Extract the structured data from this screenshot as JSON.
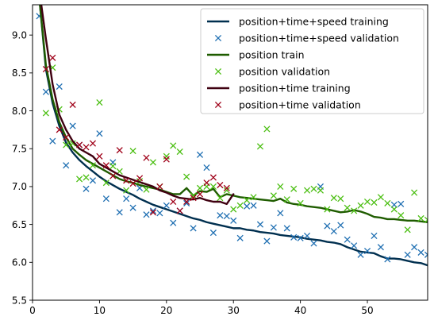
{
  "chart_data": {
    "type": "line",
    "title": "",
    "xlabel": "",
    "ylabel": "",
    "xlim": [
      0,
      59
    ],
    "ylim": [
      5.5,
      9.4
    ],
    "xticks": [
      0,
      10,
      20,
      30,
      40,
      50
    ],
    "xtick_labels": [
      "0",
      "10",
      "20",
      "30",
      "40",
      "50"
    ],
    "yticks": [
      5.5,
      6.0,
      6.5,
      7.0,
      7.5,
      8.0,
      8.5,
      9.0
    ],
    "ytick_labels": [
      "5.5",
      "6.0",
      "6.5",
      "7.0",
      "7.5",
      "8.0",
      "8.5",
      "9.0"
    ],
    "grid": false,
    "legend_placement": "top-right",
    "series": [
      {
        "name": "position+time+speed training",
        "kind": "line",
        "color": "#002f4f",
        "x": [
          1,
          2,
          3,
          4,
          5,
          6,
          7,
          8,
          9,
          10,
          11,
          12,
          13,
          14,
          15,
          16,
          17,
          18,
          19,
          20,
          21,
          22,
          23,
          24,
          25,
          26,
          27,
          28,
          29,
          30,
          31,
          32,
          33,
          34,
          35,
          36,
          37,
          38,
          39,
          40,
          41,
          42,
          43,
          44,
          45,
          46,
          47,
          48,
          49,
          50,
          51,
          52,
          53,
          54,
          55,
          56,
          57,
          58,
          59
        ],
        "y": [
          9.5,
          8.55,
          8.1,
          7.8,
          7.58,
          7.45,
          7.35,
          7.27,
          7.2,
          7.13,
          7.07,
          7.02,
          6.97,
          6.93,
          6.89,
          6.84,
          6.8,
          6.76,
          6.73,
          6.7,
          6.67,
          6.64,
          6.61,
          6.58,
          6.56,
          6.53,
          6.51,
          6.49,
          6.47,
          6.45,
          6.45,
          6.43,
          6.42,
          6.4,
          6.39,
          6.38,
          6.36,
          6.35,
          6.34,
          6.33,
          6.31,
          6.3,
          6.29,
          6.27,
          6.26,
          6.24,
          6.2,
          6.17,
          6.14,
          6.13,
          6.12,
          6.08,
          6.05,
          6.05,
          6.04,
          6.02,
          6.0,
          5.99,
          5.96
        ]
      },
      {
        "name": "position+time+speed validation",
        "kind": "scatter",
        "color": "#1f6fb2",
        "x": [
          1,
          2,
          3,
          4,
          5,
          6,
          7,
          8,
          9,
          10,
          11,
          12,
          13,
          14,
          15,
          16,
          17,
          18,
          19,
          20,
          21,
          22,
          23,
          24,
          25,
          26,
          27,
          28,
          29,
          30,
          31,
          32,
          33,
          34,
          35,
          36,
          37,
          38,
          39,
          40,
          41,
          42,
          43,
          44,
          45,
          46,
          47,
          48,
          49,
          50,
          51,
          52,
          53,
          54,
          55,
          56,
          57,
          58,
          59
        ],
        "y": [
          9.25,
          8.25,
          7.6,
          8.32,
          7.28,
          7.8,
          7.55,
          6.97,
          7.08,
          7.7,
          6.84,
          7.32,
          6.66,
          6.84,
          6.72,
          6.98,
          6.63,
          6.68,
          6.65,
          6.75,
          6.52,
          6.68,
          6.78,
          6.45,
          7.42,
          7.25,
          6.39,
          6.62,
          6.61,
          6.55,
          6.32,
          6.74,
          6.75,
          6.5,
          6.28,
          6.46,
          6.65,
          6.45,
          6.33,
          6.32,
          6.35,
          6.25,
          7.0,
          6.48,
          6.41,
          6.49,
          6.3,
          6.22,
          6.1,
          6.15,
          6.35,
          6.2,
          6.04,
          6.76,
          6.77,
          6.1,
          6.2,
          6.13,
          6.1
        ]
      },
      {
        "name": "position train",
        "kind": "line",
        "color": "#1f5c00",
        "x": [
          1,
          2,
          3,
          4,
          5,
          6,
          7,
          8,
          9,
          10,
          11,
          12,
          13,
          14,
          15,
          16,
          17,
          18,
          19,
          20,
          21,
          22,
          23,
          24,
          25,
          26,
          27,
          28,
          29,
          30,
          31,
          32,
          33,
          34,
          35,
          36,
          37,
          38,
          39,
          40,
          41,
          42,
          43,
          44,
          45,
          46,
          47,
          48,
          49,
          50,
          51,
          52,
          53,
          54,
          55,
          56,
          57,
          58,
          59
        ],
        "y": [
          9.5,
          8.6,
          8.15,
          7.85,
          7.65,
          7.5,
          7.42,
          7.35,
          7.3,
          7.25,
          7.2,
          7.15,
          7.1,
          7.07,
          7.05,
          7.02,
          7.0,
          6.98,
          6.96,
          6.93,
          6.9,
          6.9,
          6.98,
          6.88,
          6.94,
          6.93,
          6.97,
          6.86,
          6.9,
          6.88,
          6.86,
          6.85,
          6.84,
          6.83,
          6.82,
          6.81,
          6.84,
          6.79,
          6.77,
          6.76,
          6.74,
          6.73,
          6.72,
          6.7,
          6.68,
          6.66,
          6.67,
          6.69,
          6.67,
          6.64,
          6.6,
          6.59,
          6.57,
          6.57,
          6.56,
          6.55,
          6.55,
          6.54,
          6.53
        ]
      },
      {
        "name": "position validation",
        "kind": "scatter",
        "color": "#4cbf13",
        "x": [
          2,
          3,
          4,
          5,
          6,
          7,
          8,
          9,
          10,
          11,
          12,
          13,
          14,
          15,
          16,
          17,
          18,
          19,
          20,
          21,
          22,
          23,
          24,
          25,
          26,
          27,
          28,
          29,
          30,
          31,
          32,
          33,
          34,
          35,
          36,
          37,
          38,
          39,
          40,
          41,
          42,
          43,
          44,
          45,
          46,
          47,
          48,
          49,
          50,
          51,
          52,
          53,
          54,
          55,
          56,
          57,
          58,
          59
        ],
        "y": [
          7.97,
          8.57,
          8.02,
          7.55,
          7.57,
          7.1,
          7.12,
          7.28,
          8.11,
          7.05,
          7.27,
          7.2,
          6.95,
          7.47,
          7.07,
          6.96,
          7.32,
          7.0,
          7.4,
          7.54,
          7.46,
          7.13,
          6.88,
          6.98,
          7.0,
          7.0,
          6.85,
          6.95,
          6.7,
          6.75,
          6.82,
          6.86,
          7.53,
          7.76,
          6.88,
          7.0,
          6.83,
          6.97,
          6.78,
          6.95,
          6.97,
          6.95,
          6.7,
          6.85,
          6.84,
          6.72,
          6.68,
          6.75,
          6.8,
          6.79,
          6.86,
          6.78,
          6.7,
          6.62,
          6.43,
          6.92,
          6.58,
          6.56
        ]
      },
      {
        "name": "position+time training",
        "kind": "line",
        "color": "#3f0010",
        "x": [
          1,
          2,
          3,
          4,
          5,
          6,
          7,
          8,
          9,
          10,
          11,
          12,
          13,
          14,
          15,
          16,
          17,
          18,
          19,
          20,
          21,
          22,
          23,
          24,
          25,
          26,
          27,
          28,
          29,
          30
        ],
        "y": [
          9.6,
          8.95,
          8.35,
          7.95,
          7.75,
          7.6,
          7.5,
          7.45,
          7.4,
          7.3,
          7.25,
          7.2,
          7.15,
          7.12,
          7.09,
          7.06,
          7.03,
          7.0,
          6.95,
          6.92,
          6.88,
          6.85,
          6.84,
          6.83,
          6.85,
          6.82,
          6.8,
          6.8,
          6.77,
          6.9
        ]
      },
      {
        "name": "position+time validation",
        "kind": "scatter",
        "color": "#9f0018",
        "x": [
          2,
          3,
          4,
          5,
          6,
          7,
          8,
          9,
          10,
          11,
          12,
          13,
          14,
          15,
          16,
          17,
          18,
          19,
          20,
          21,
          22,
          23,
          24,
          25,
          26,
          27,
          28,
          29
        ],
        "y": [
          8.55,
          8.7,
          7.75,
          7.65,
          8.08,
          7.55,
          7.52,
          7.57,
          7.4,
          7.28,
          7.14,
          7.48,
          7.08,
          7.04,
          7.11,
          7.38,
          6.66,
          7.0,
          7.36,
          6.8,
          6.68,
          6.8,
          6.85,
          6.9,
          7.05,
          7.12,
          7.02,
          6.98
        ]
      }
    ]
  }
}
